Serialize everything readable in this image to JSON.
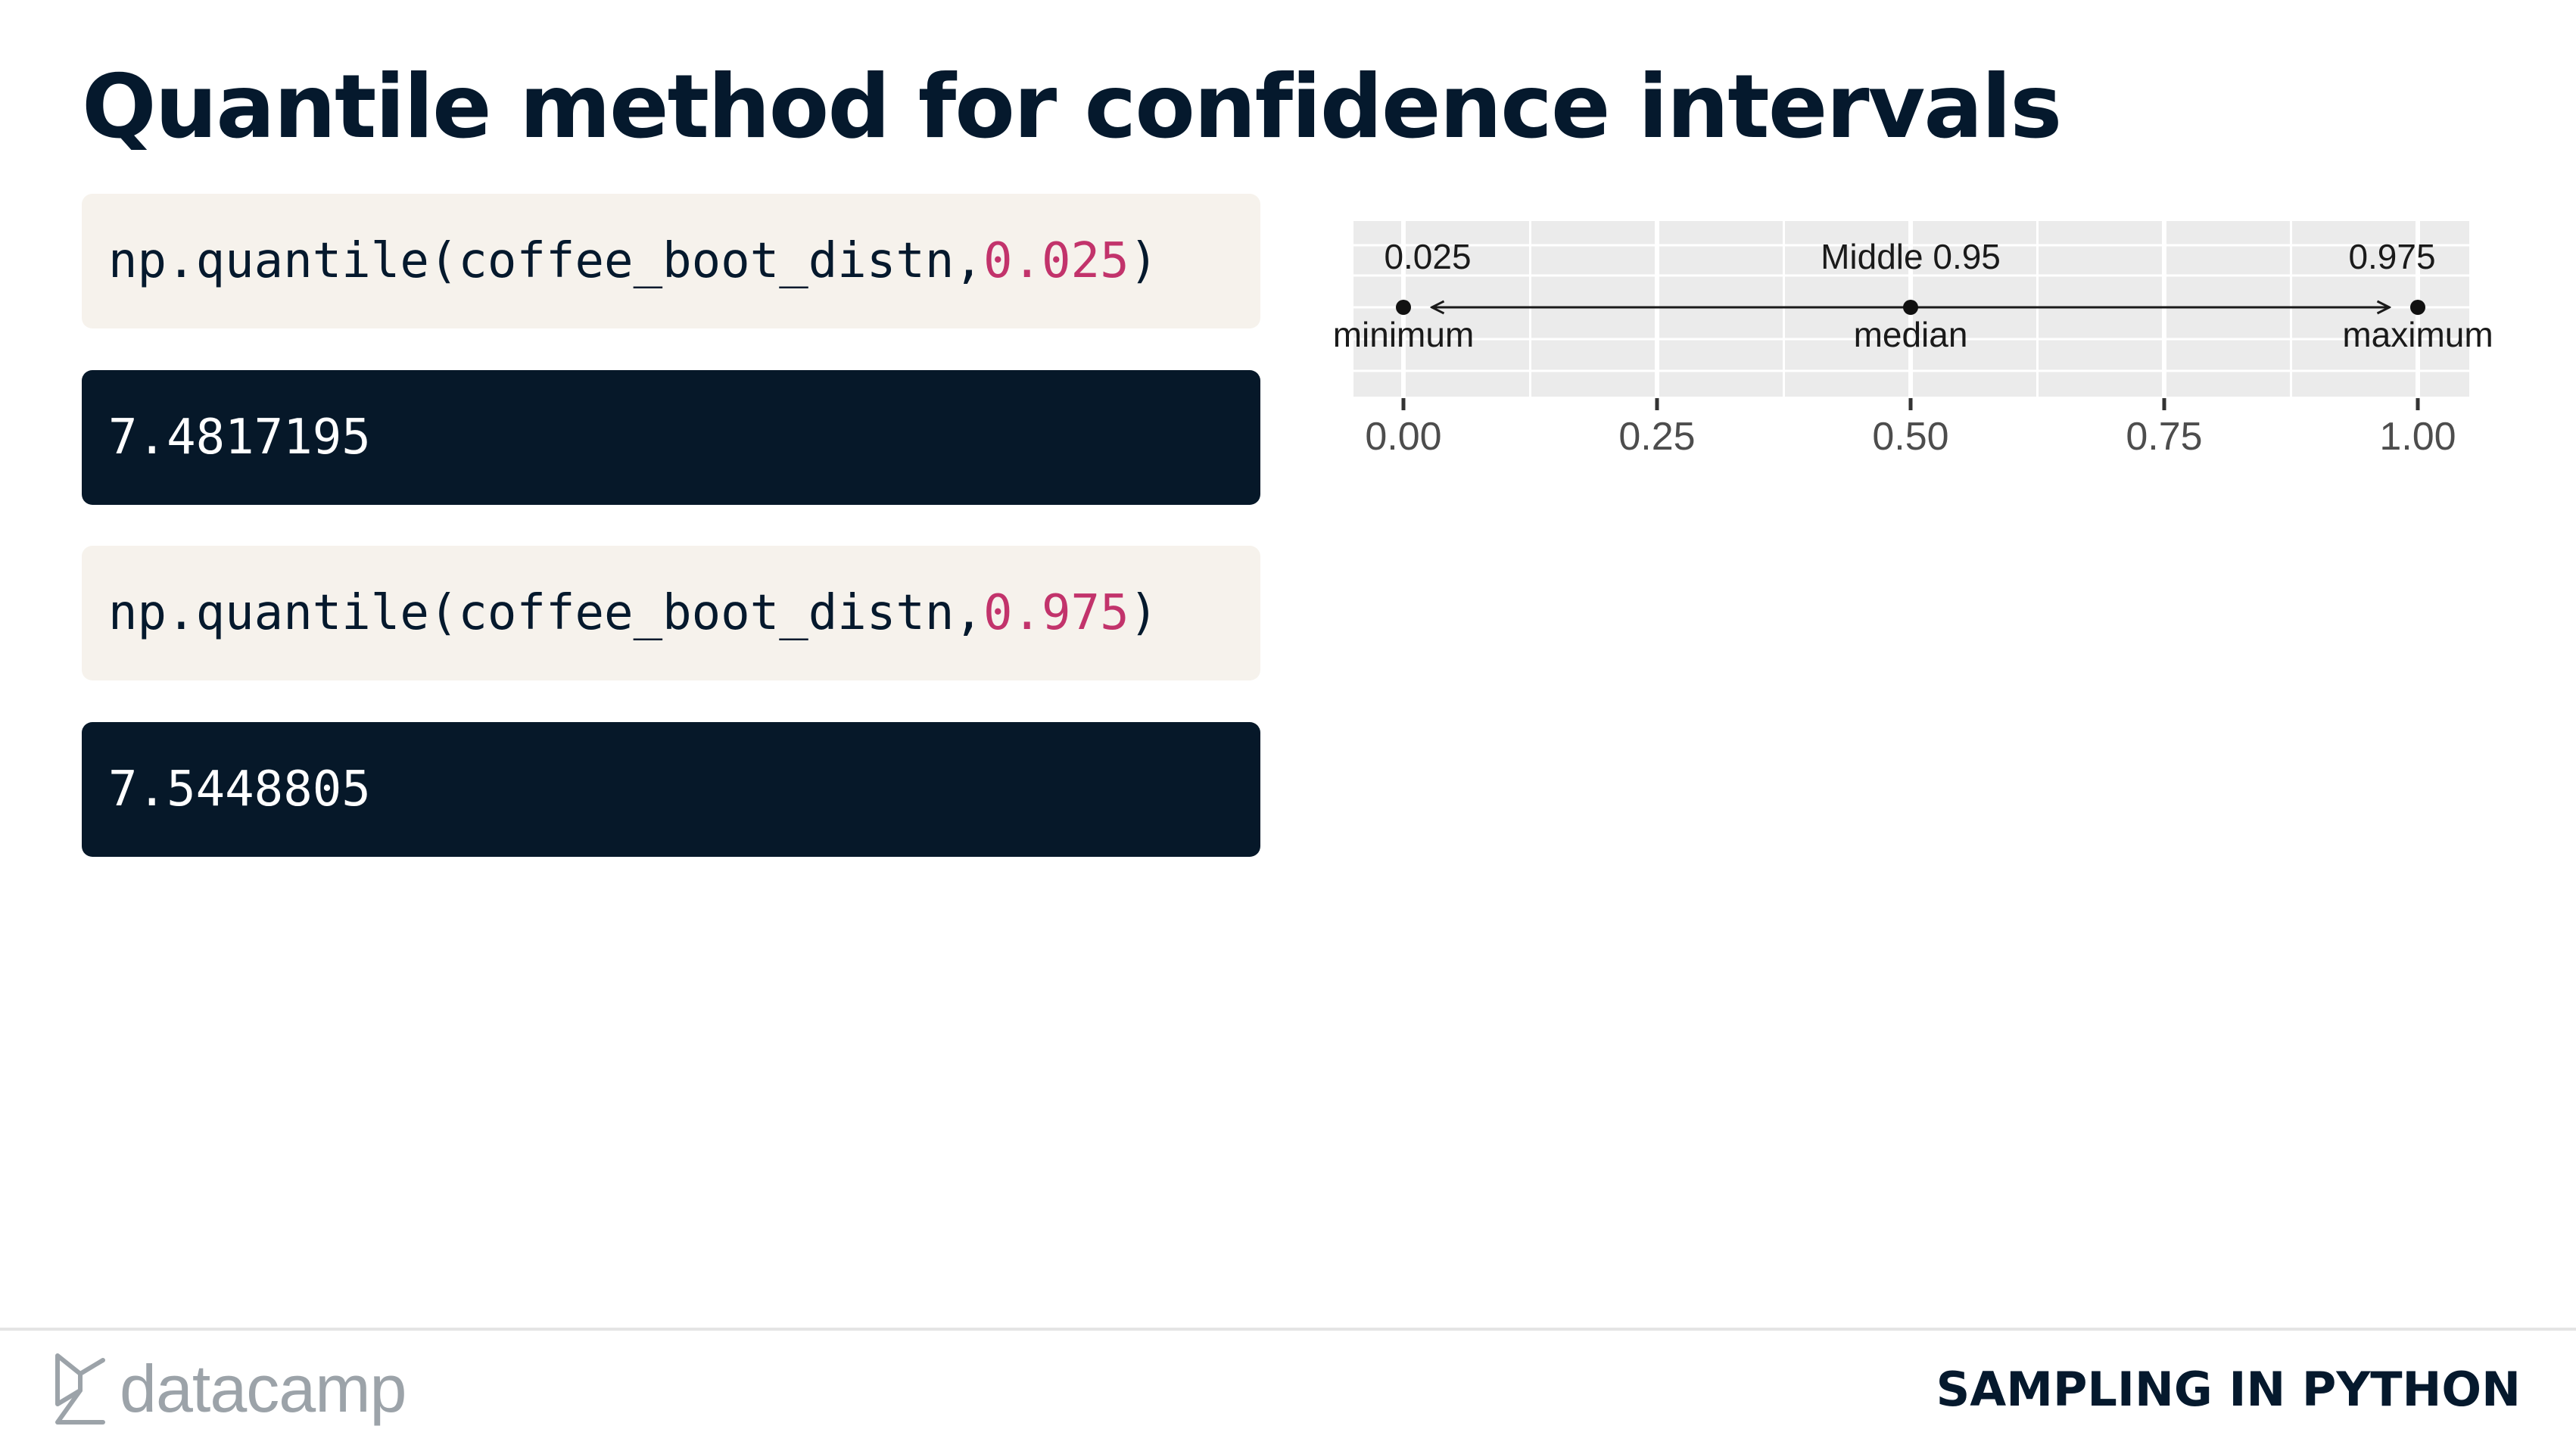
{
  "title": "Quantile method for confidence intervals",
  "code_cells": [
    {
      "prefix": "np.quantile(coffee_boot_distn, ",
      "number": "0.025",
      "suffix": ")",
      "output": "7.4817195"
    },
    {
      "prefix": "np.quantile(coffee_boot_distn, ",
      "number": "0.975",
      "suffix": ")",
      "output": "7.5448805"
    }
  ],
  "colors": {
    "code_bg": "#f6f2ec",
    "output_bg": "#061829",
    "number": "#c2336b",
    "navy": "#05192d"
  },
  "diagram": {
    "xlim": [
      0,
      1
    ],
    "ticks": [
      "0.00",
      "0.25",
      "0.50",
      "0.75",
      "1.00"
    ],
    "tick_values": [
      0,
      0.25,
      0.5,
      0.75,
      1
    ],
    "points": [
      {
        "x": 0,
        "label": "minimum",
        "top_label": "0.025"
      },
      {
        "x": 0.5,
        "label": "median",
        "top_label": "Middle 0.95"
      },
      {
        "x": 1,
        "label": "maximum",
        "top_label": "0.975"
      }
    ],
    "arrow": {
      "from": 0.025,
      "to": 0.975,
      "style": "double-headed"
    }
  },
  "footer": {
    "brand": "datacamp",
    "logo_icon": "datacamp-logo-icon",
    "course": "SAMPLING IN PYTHON"
  }
}
